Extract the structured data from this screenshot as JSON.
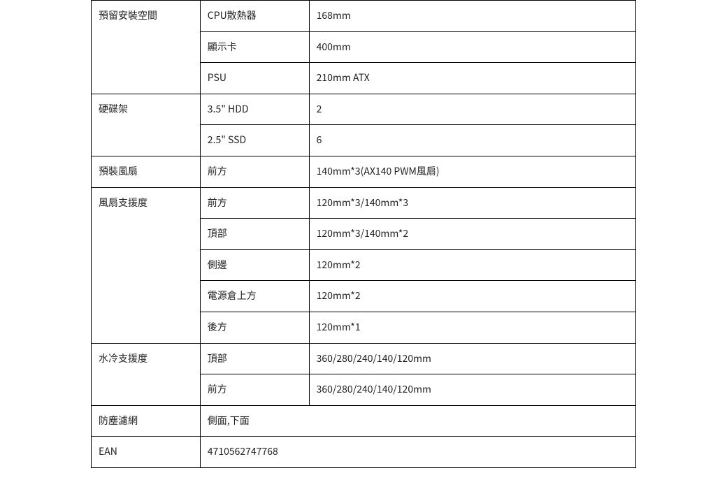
{
  "rows": [
    {
      "cat": "預留安裝空間",
      "catSpan": 3,
      "sub": "CPU散熱器",
      "val": "168mm"
    },
    {
      "sub": "顯示卡",
      "val": "400mm"
    },
    {
      "sub": "PSU",
      "val": "210mm ATX"
    },
    {
      "cat": "硬碟架",
      "catSpan": 2,
      "sub": "3.5\"  HDD",
      "val": "2"
    },
    {
      "sub": "2.5\"  SSD",
      "val": "6"
    },
    {
      "cat": "預裝風扇",
      "catSpan": 1,
      "sub": "前方",
      "val": "140mm*3(AX140 PWM風扇)"
    },
    {
      "cat": "風扇支援度",
      "catSpan": 5,
      "sub": "前方",
      "val": "120mm*3/140mm*3"
    },
    {
      "sub": "頂部",
      "val": "120mm*3/140mm*2"
    },
    {
      "sub": "側邊",
      "val": "120mm*2"
    },
    {
      "sub": "電源倉上方",
      "val": "120mm*2"
    },
    {
      "sub": "後方",
      "val": "120mm*1"
    },
    {
      "cat": "水冷支援度",
      "catSpan": 2,
      "sub": "頂部",
      "val": "360/280/240/140/120mm"
    },
    {
      "sub": "前方",
      "val": "360/280/240/140/120mm"
    },
    {
      "cat": "防塵濾網",
      "merged": "側面,下面"
    },
    {
      "cat": "EAN",
      "merged": "4710562747768"
    }
  ]
}
